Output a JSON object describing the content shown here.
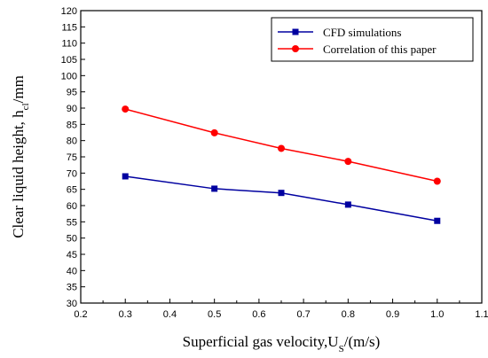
{
  "chart_data": {
    "type": "line",
    "title": "",
    "xlabel": "Superficial gas velocity,U",
    "xlabel_sub": "S",
    "xlabel_tail": "/(m/s)",
    "ylabel": "Clear liquid height, h",
    "ylabel_sub": "cl",
    "ylabel_tail": "/mm",
    "xlim": [
      0.2,
      1.1
    ],
    "ylim": [
      30,
      120
    ],
    "xticks": [
      "0.2",
      "0.3",
      "0.4",
      "0.5",
      "0.6",
      "0.7",
      "0.8",
      "0.9",
      "1.0",
      "1.1"
    ],
    "yticks": [
      "30",
      "35",
      "40",
      "45",
      "50",
      "55",
      "60",
      "65",
      "70",
      "75",
      "80",
      "85",
      "90",
      "95",
      "100",
      "105",
      "110",
      "115",
      "120"
    ],
    "grid": false,
    "legend_position": "top-right",
    "series": [
      {
        "name": "CFD simulations",
        "color": "#0000a0",
        "marker": "square",
        "x": [
          0.3,
          0.5,
          0.65,
          0.8,
          1.0
        ],
        "y": [
          69.0,
          65.2,
          63.9,
          60.3,
          55.3
        ]
      },
      {
        "name": "Correlation of this paper",
        "color": "#ff0000",
        "marker": "circle",
        "x": [
          0.3,
          0.5,
          0.65,
          0.8,
          1.0
        ],
        "y": [
          89.7,
          82.4,
          77.6,
          73.6,
          67.5
        ]
      }
    ]
  }
}
